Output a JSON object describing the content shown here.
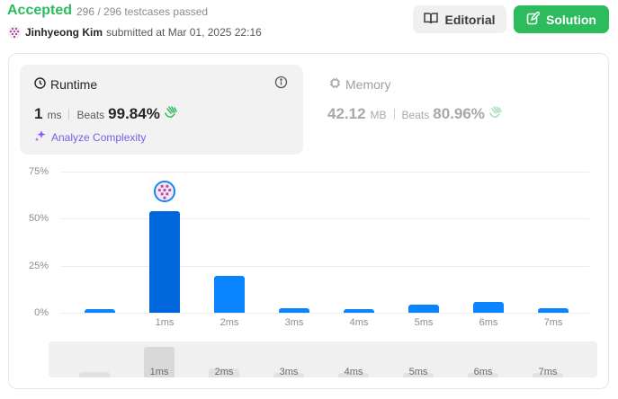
{
  "header": {
    "status": "Accepted",
    "testcases": "296 / 296 testcases passed",
    "user": "Jinhyeong Kim",
    "submitted_text": "submitted at Mar 01, 2025 22:16",
    "editorial_label": "Editorial",
    "solution_label": "Solution"
  },
  "runtime": {
    "title": "Runtime",
    "value": "1",
    "unit": "ms",
    "beats_label": "Beats",
    "beats": "99.84%",
    "analyze_label": "Analyze Complexity"
  },
  "memory": {
    "title": "Memory",
    "value": "42.12",
    "unit": "MB",
    "beats_label": "Beats",
    "beats": "80.96%"
  },
  "colors": {
    "accepted": "#2cbb5d",
    "bar": "#0a84ff",
    "bar_active": "#0066dc",
    "analyze": "#7c5ce6"
  },
  "chart_data": {
    "type": "bar",
    "categories": [
      "",
      "1ms",
      "2ms",
      "3ms",
      "4ms",
      "5ms",
      "6ms",
      "7ms"
    ],
    "values": [
      2,
      54,
      19.5,
      2.5,
      2,
      4.5,
      5.5,
      2.5
    ],
    "highlight_index": 1,
    "yticks": [
      "75%",
      "50%",
      "25%",
      "0%"
    ],
    "ylim": [
      0,
      75
    ],
    "grid": true
  },
  "scroller": {
    "labels": [
      "",
      "1ms",
      "2ms",
      "3ms",
      "4ms",
      "5ms",
      "6ms",
      "7ms"
    ],
    "values": [
      0.18,
      1.0,
      0.3,
      0.15,
      0.15,
      0.15,
      0.15,
      0.15
    ],
    "active_index": 1
  }
}
